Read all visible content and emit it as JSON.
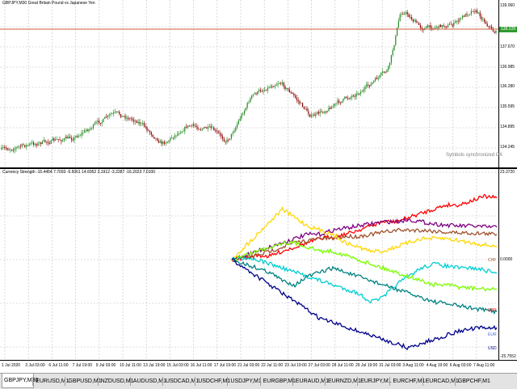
{
  "window": {
    "main_header": "GBPJPY,M30  Great Britain Pound vs Japanese Yen",
    "indicator_header": "Currency Strength -15.4454 7.7093 -5.5061 14.6952 3.1912 -3.2287 -16.2023 7.0100",
    "sync_text": "Symbols synchronized OK"
  },
  "price_scale": [
    "139.060",
    "137.670",
    "136.985",
    "136.280",
    "135.595",
    "134.895",
    "134.245"
  ],
  "current_price": "138.228",
  "indicator_scale": [
    "23.3720",
    "0.0000",
    "-25.7552"
  ],
  "currency_labels": [
    {
      "name": "CHF",
      "color": "#a0522d"
    },
    {
      "name": "GBP",
      "color": "#ff0000"
    },
    {
      "name": "EUR",
      "color": "#4169e1"
    },
    {
      "name": "USD",
      "color": "#00008b"
    }
  ],
  "time_labels": [
    "1 Jul 2020",
    "3 Jul 03:00",
    "6 Jul 11:00",
    "7 Jul 19:00",
    "9 Jul 03:00",
    "10 Jul 11:00",
    "13 Jul 19:00",
    "15 Jul 03:00",
    "16 Jul 11:00",
    "17 Jul 19:00",
    "21 Jul 03:00",
    "22 Jul 11:00",
    "23 Jul 19:00",
    "27 Jul 03:00",
    "28 Jul 11:00",
    "29 Jul 19:00",
    "31 Jul 03:00",
    "3 Aug 11:00",
    "4 Aug 19:00",
    "6 Aug 03:00",
    "7 Aug 11:00"
  ],
  "tabs": [
    "GBPJPY,M30",
    "EURUSD,M1",
    "GBPUSD,M1",
    "NZDUSD,M1",
    "AUDUSD,M1",
    "USDCAD,M1",
    "USDCHF,M1",
    "USDJPY,M1",
    "EURGBP,M1",
    "EURAUD,M1",
    "EURNZD,M1",
    "EURJPY,M1",
    "EURCHF,M1",
    "EURCAD,M1",
    "GBPCHF,M1"
  ],
  "active_tab": 0,
  "colors": {
    "bull": "#228b22",
    "bear": "#8b0000",
    "current_price_line": "#cd5c3a",
    "grid": "#c0c0c0"
  },
  "icons": {
    "scroll_left": "triangle-left-icon",
    "scroll_right": "triangle-right-icon"
  },
  "strength_series": [
    {
      "name": "GBP",
      "color": "#ff0000",
      "values": [
        0,
        0.5,
        1,
        0.8,
        2,
        3,
        4,
        5,
        5.5,
        6,
        7,
        8,
        9,
        9,
        10,
        11,
        12,
        13,
        13,
        14,
        15,
        14.7
      ]
    },
    {
      "name": "",
      "color": "#800080",
      "values": [
        0,
        1,
        2,
        3,
        4,
        5,
        6,
        6,
        7,
        7.5,
        8,
        8.5,
        9,
        9,
        9.5,
        9,
        8.5,
        8.2,
        8,
        8,
        7.8,
        7.7
      ]
    },
    {
      "name": "CHF",
      "color": "#a0522d",
      "values": [
        0,
        0.3,
        1,
        2,
        3,
        4,
        4.5,
        5,
        5,
        5.5,
        5.5,
        6,
        6.5,
        7,
        7,
        7,
        6.8,
        6.5,
        6.4,
        6.3,
        6.2,
        6.0
      ]
    },
    {
      "name": "",
      "color": "#ffd700",
      "values": [
        0,
        3,
        6,
        9,
        12,
        10,
        8,
        7,
        6,
        4,
        3,
        2,
        2,
        3,
        4,
        5,
        5,
        5,
        4.5,
        4,
        3.5,
        3.2
      ]
    },
    {
      "name": "",
      "color": "#00ced1",
      "values": [
        0,
        0.5,
        0,
        -1,
        -2,
        -3,
        -4,
        -5,
        -6,
        -7,
        -8,
        -10,
        -9,
        -6,
        -4,
        -2,
        -1,
        -1.5,
        -2,
        -2,
        -2.5,
        -3.2
      ]
    },
    {
      "name": "",
      "color": "#008080",
      "values": [
        0,
        -1,
        -2,
        -3,
        -5,
        -6,
        -4,
        -3,
        -2,
        -3,
        -4,
        -5,
        -6,
        -7,
        -8,
        -9,
        -10,
        -10.5,
        -11,
        -11.5,
        -12,
        -12.4
      ]
    },
    {
      "name": "",
      "color": "#7cfc00",
      "values": [
        0,
        1,
        2,
        3,
        4,
        4,
        3,
        2,
        2,
        1,
        0,
        -1,
        -2,
        -3,
        -4,
        -5,
        -6,
        -6,
        -6.5,
        -6.8,
        -7,
        -7.1
      ]
    },
    {
      "name": "USD",
      "color": "#00008b",
      "values": [
        0,
        -2,
        -4,
        -6,
        -8,
        -10,
        -12,
        -14,
        -15,
        -16,
        -17,
        -18,
        -19,
        -20,
        -21,
        -20,
        -19,
        -18,
        -17,
        -16.5,
        -16.2,
        -16.2
      ]
    }
  ]
}
